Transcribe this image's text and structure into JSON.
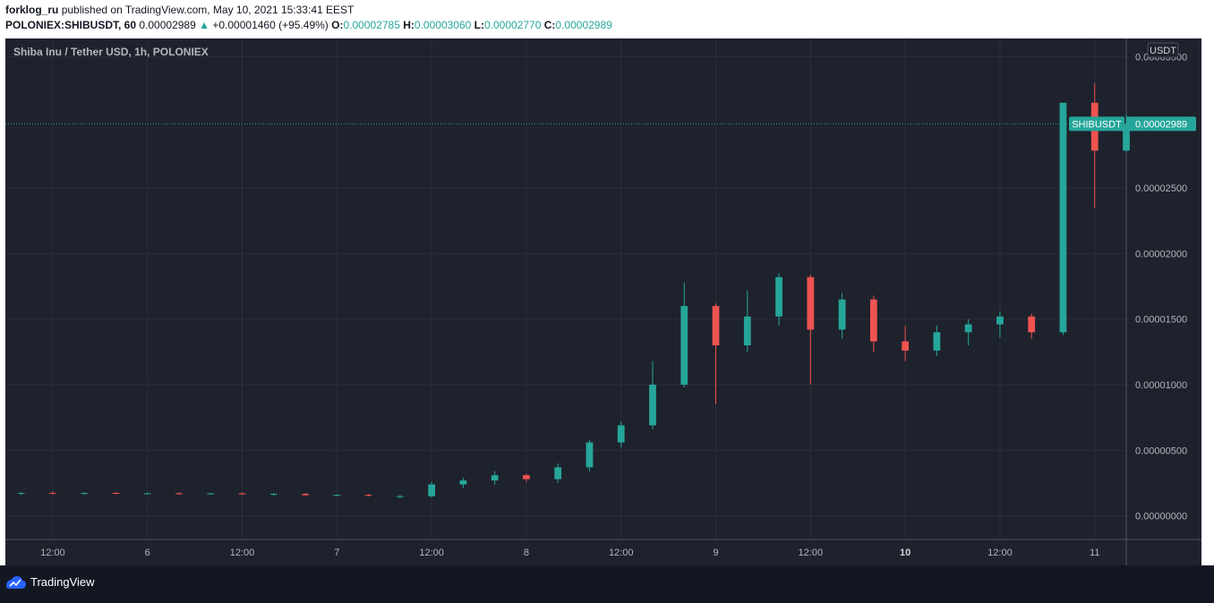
{
  "header": {
    "publisher": "forklog_ru",
    "published_text": "published on TradingView.com, May 10, 2021 15:33:41 EEST",
    "symbol_interval": "POLONIEX:SHIBUSDT, 60",
    "last_price": "0.00002989",
    "up_arrow": "▲",
    "change": "+0.00001460 (+95.49%)",
    "ohlc": {
      "o_label": "O:",
      "o_value": "0.00002785",
      "h_label": "H:",
      "h_value": "0.00003060",
      "l_label": "L:",
      "l_value": "0.00002770",
      "c_label": "C:",
      "c_value": "0.00002989"
    }
  },
  "chart_title": "Shiba Inu / Tether USD, 1h, POLONIEX",
  "footer": {
    "brand": "TradingView"
  },
  "colors": {
    "up": "#26a69a",
    "down": "#ef5350",
    "background": "#1e222d",
    "grid": "#2a2e39",
    "text": "#d1d4dc",
    "axis_text": "#b2b5be"
  },
  "chart_data": {
    "type": "candlestick",
    "title": "Shiba Inu / Tether USD, 1h, POLONIEX",
    "currency": "USDT",
    "x_ticks": [
      {
        "label": "12:00",
        "index": 1.5
      },
      {
        "label": "6",
        "index": 4.5
      },
      {
        "label": "12:00",
        "index": 7.5
      },
      {
        "label": "7",
        "index": 10.5
      },
      {
        "label": "12:00",
        "index": 13.5
      },
      {
        "label": "8",
        "index": 16.5
      },
      {
        "label": "12:00",
        "index": 19.5
      },
      {
        "label": "9",
        "index": 22.5
      },
      {
        "label": "12:00",
        "index": 25.5
      },
      {
        "label": "10",
        "index": 28.5
      },
      {
        "label": "12:00",
        "index": 31.5
      },
      {
        "label": "11",
        "index": 34.5
      }
    ],
    "bold_x_tick": "10",
    "y_ticks": [
      {
        "value": 0.0,
        "label": "0.00000000"
      },
      {
        "value": 5e-06,
        "label": "0.00000500"
      },
      {
        "value": 1e-05,
        "label": "0.00001000"
      },
      {
        "value": 1.5e-05,
        "label": "0.00001500"
      },
      {
        "value": 2e-05,
        "label": "0.00002000"
      },
      {
        "value": 2.5e-05,
        "label": "0.00002500"
      },
      {
        "value": 3.5e-05,
        "label": "0.00003500"
      }
    ],
    "ylim": [
      -1.8e-06,
      3.64e-05
    ],
    "xlim": [
      0,
      35.5
    ],
    "last_price_value": 2.989e-05,
    "last_price_label": "SHIBUSDT",
    "last_price_text": "0.00002989",
    "grid": true,
    "candles": [
      {
        "o": 1.7e-06,
        "h": 1.8e-06,
        "l": 1.6e-06,
        "c": 1.75e-06
      },
      {
        "o": 1.75e-06,
        "h": 1.85e-06,
        "l": 1.65e-06,
        "c": 1.7e-06
      },
      {
        "o": 1.7e-06,
        "h": 1.8e-06,
        "l": 1.6e-06,
        "c": 1.75e-06
      },
      {
        "o": 1.75e-06,
        "h": 1.82e-06,
        "l": 1.65e-06,
        "c": 1.7e-06
      },
      {
        "o": 1.7e-06,
        "h": 1.78e-06,
        "l": 1.62e-06,
        "c": 1.72e-06
      },
      {
        "o": 1.72e-06,
        "h": 1.8e-06,
        "l": 1.62e-06,
        "c": 1.68e-06
      },
      {
        "o": 1.68e-06,
        "h": 1.76e-06,
        "l": 1.6e-06,
        "c": 1.72e-06
      },
      {
        "o": 1.72e-06,
        "h": 1.78e-06,
        "l": 1.6e-06,
        "c": 1.65e-06
      },
      {
        "o": 1.65e-06,
        "h": 1.75e-06,
        "l": 1.55e-06,
        "c": 1.68e-06
      },
      {
        "o": 1.68e-06,
        "h": 1.74e-06,
        "l": 1.52e-06,
        "c": 1.58e-06
      },
      {
        "o": 1.58e-06,
        "h": 1.66e-06,
        "l": 1.5e-06,
        "c": 1.6e-06
      },
      {
        "o": 1.6e-06,
        "h": 1.68e-06,
        "l": 1.48e-06,
        "c": 1.55e-06
      },
      {
        "o": 1.45e-06,
        "h": 1.6e-06,
        "l": 1.35e-06,
        "c": 1.5e-06
      },
      {
        "o": 1.5e-06,
        "h": 2.6e-06,
        "l": 1.4e-06,
        "c": 2.4e-06
      },
      {
        "o": 2.4e-06,
        "h": 2.9e-06,
        "l": 2.1e-06,
        "c": 2.7e-06
      },
      {
        "o": 2.7e-06,
        "h": 3.4e-06,
        "l": 2.4e-06,
        "c": 3.1e-06
      },
      {
        "o": 3.1e-06,
        "h": 3.2e-06,
        "l": 2.6e-06,
        "c": 2.8e-06
      },
      {
        "o": 2.8e-06,
        "h": 4e-06,
        "l": 2.5e-06,
        "c": 3.7e-06
      },
      {
        "o": 3.7e-06,
        "h": 5.8e-06,
        "l": 3.4e-06,
        "c": 5.6e-06
      },
      {
        "o": 5.6e-06,
        "h": 7.2e-06,
        "l": 5.2e-06,
        "c": 6.9e-06
      },
      {
        "o": 6.9e-06,
        "h": 1.18e-05,
        "l": 6.6e-06,
        "c": 1e-05
      },
      {
        "o": 1e-05,
        "h": 1.78e-05,
        "l": 9.8e-06,
        "c": 1.6e-05
      },
      {
        "o": 1.6e-05,
        "h": 1.62e-05,
        "l": 8.5e-06,
        "c": 1.3e-05
      },
      {
        "o": 1.3e-05,
        "h": 1.72e-05,
        "l": 1.25e-05,
        "c": 1.52e-05
      },
      {
        "o": 1.52e-05,
        "h": 1.85e-05,
        "l": 1.45e-05,
        "c": 1.82e-05
      },
      {
        "o": 1.82e-05,
        "h": 1.84e-05,
        "l": 1e-05,
        "c": 1.42e-05
      },
      {
        "o": 1.42e-05,
        "h": 1.7e-05,
        "l": 1.35e-05,
        "c": 1.65e-05
      },
      {
        "o": 1.65e-05,
        "h": 1.68e-05,
        "l": 1.25e-05,
        "c": 1.33e-05
      },
      {
        "o": 1.33e-05,
        "h": 1.45e-05,
        "l": 1.18e-05,
        "c": 1.26e-05
      },
      {
        "o": 1.26e-05,
        "h": 1.45e-05,
        "l": 1.22e-05,
        "c": 1.4e-05
      },
      {
        "o": 1.4e-05,
        "h": 1.5e-05,
        "l": 1.3e-05,
        "c": 1.46e-05
      },
      {
        "o": 1.46e-05,
        "h": 1.56e-05,
        "l": 1.36e-05,
        "c": 1.52e-05
      },
      {
        "o": 1.52e-05,
        "h": 1.54e-05,
        "l": 1.35e-05,
        "c": 1.4e-05
      },
      {
        "o": 1.4e-05,
        "h": 3.15e-05,
        "l": 1.38e-05,
        "c": 3.15e-05
      },
      {
        "o": 3.15e-05,
        "h": 3.3e-05,
        "l": 2.35e-05,
        "c": 2.785e-05
      },
      {
        "o": 2.785e-05,
        "h": 3.06e-05,
        "l": 2.77e-05,
        "c": 2.989e-05
      }
    ]
  }
}
